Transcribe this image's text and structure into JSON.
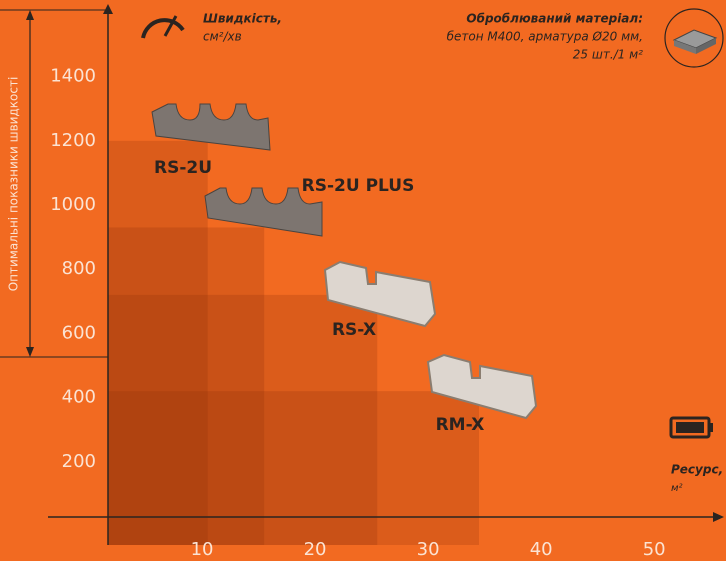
{
  "chart_data": {
    "type": "bar",
    "y_axis_label": "Оптимальні показники швидкості",
    "speed_title": "Швидкість,",
    "speed_unit": "см²/хв",
    "material_title": "Оброблюваний матеріал:",
    "material_line1": "бетон М400, арматура Ø20 мм,",
    "material_line2": "25 шт./1 м²",
    "resource_title": "Ресурс,",
    "resource_unit": "м²",
    "categories": [
      "RS-2U",
      "RS-2U PLUS",
      "RS-X",
      "RM-X"
    ],
    "x": [
      10.5,
      15.5,
      25.5,
      34.5
    ],
    "values": [
      1200,
      930,
      720,
      420
    ],
    "color": "#8a2e08",
    "xlim": [
      0,
      56
    ],
    "xticks": [
      10,
      20,
      30,
      40,
      50
    ],
    "ylim": [
      0,
      1500
    ],
    "yticks": [
      200,
      400,
      600,
      800,
      1000,
      1200,
      1400
    ]
  }
}
